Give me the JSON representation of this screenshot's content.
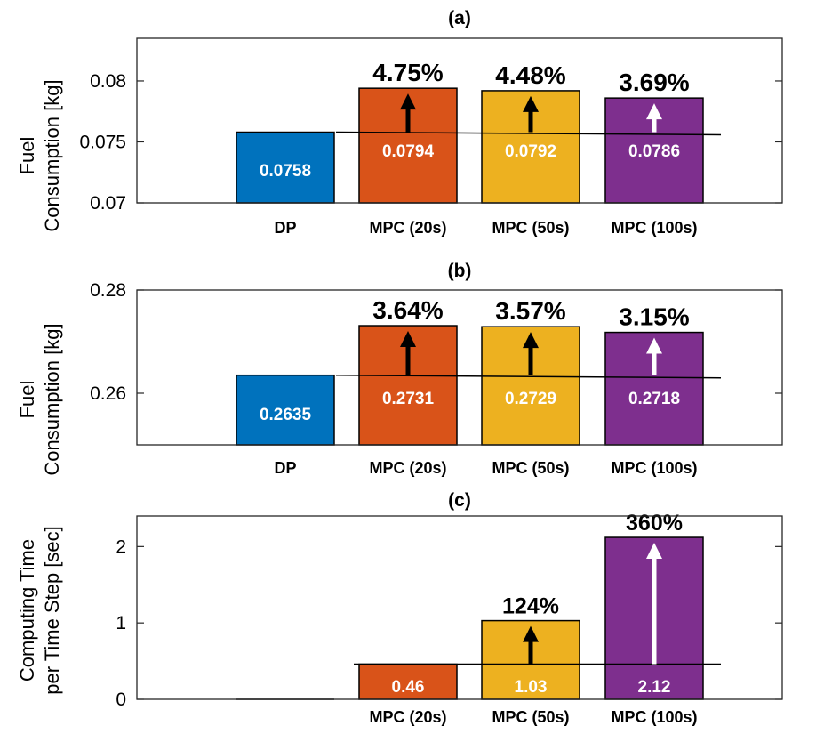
{
  "chart_data": [
    {
      "type": "bar",
      "title": "(a)",
      "ylabel": [
        "Fuel",
        "Consumption [kg]"
      ],
      "xlabel": "",
      "ylim": [
        0.07,
        0.0835
      ],
      "yticks": [
        0.07,
        0.075,
        0.08
      ],
      "ytick_labels": [
        "0.07",
        "0.075",
        "0.08"
      ],
      "categories": [
        "DP",
        "MPC (20s)",
        "MPC (50s)",
        "MPC (100s)"
      ],
      "values": [
        0.0758,
        0.0794,
        0.0792,
        0.0786
      ],
      "value_labels": [
        "0.0758",
        "0.0794",
        "0.0792",
        "0.0786"
      ],
      "increase_labels": [
        "",
        "4.75%",
        "4.48%",
        "3.69%"
      ],
      "reference_value": 0.0758,
      "colors": [
        "#0072BD",
        "#D95319",
        "#EDB120",
        "#7E2F8E"
      ],
      "arrow_colors": [
        "",
        "#000000",
        "#000000",
        "#ffffff"
      ]
    },
    {
      "type": "bar",
      "title": "(b)",
      "ylabel": [
        "Fuel",
        "Consumption [kg]"
      ],
      "xlabel": "",
      "ylim": [
        0.25,
        0.28
      ],
      "yticks": [
        0.26,
        0.28
      ],
      "ytick_labels": [
        "0.26",
        "0.28"
      ],
      "categories": [
        "DP",
        "MPC (20s)",
        "MPC (50s)",
        "MPC (100s)"
      ],
      "values": [
        0.2635,
        0.2731,
        0.2729,
        0.2718
      ],
      "value_labels": [
        "0.2635",
        "0.2731",
        "0.2729",
        "0.2718"
      ],
      "increase_labels": [
        "",
        "3.64%",
        "3.57%",
        "3.15%"
      ],
      "reference_value": 0.2635,
      "colors": [
        "#0072BD",
        "#D95319",
        "#EDB120",
        "#7E2F8E"
      ],
      "arrow_colors": [
        "",
        "#000000",
        "#000000",
        "#ffffff"
      ]
    },
    {
      "type": "bar",
      "title": "(c)",
      "ylabel": [
        "Computing Time",
        "per Time Step [sec]"
      ],
      "xlabel": "",
      "ylim": [
        0,
        2.4
      ],
      "yticks": [
        0,
        1,
        2
      ],
      "ytick_labels": [
        "0",
        "1",
        "2"
      ],
      "categories": [
        "",
        "MPC (20s)",
        "MPC (50s)",
        "MPC (100s)"
      ],
      "values": [
        0,
        0.46,
        1.03,
        2.12
      ],
      "value_labels": [
        "",
        "0.46",
        "1.03",
        "2.12"
      ],
      "increase_labels": [
        "",
        "",
        "124%",
        "360%"
      ],
      "reference_value": 0.46,
      "colors": [
        "#0072BD",
        "#D95319",
        "#EDB120",
        "#7E2F8E"
      ],
      "arrow_colors": [
        "",
        "",
        "#000000",
        "#ffffff"
      ]
    }
  ]
}
